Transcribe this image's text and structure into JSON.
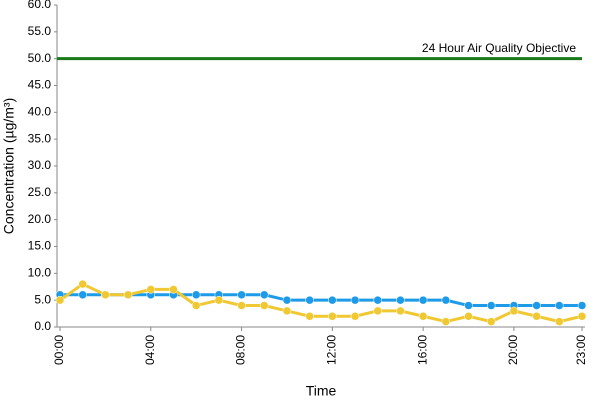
{
  "chart_data": {
    "type": "line",
    "x_label": "Time",
    "y_label": "Concentration (µg/m³)",
    "categories": [
      "00:00",
      null,
      null,
      null,
      "04:00",
      null,
      null,
      null,
      "08:00",
      null,
      null,
      null,
      "12:00",
      null,
      null,
      null,
      "16:00",
      null,
      null,
      null,
      "20:00",
      null,
      null,
      "23:00"
    ],
    "series": [
      {
        "color": "#1e9be8",
        "values": [
          6,
          6,
          6,
          6,
          6,
          6,
          6,
          6,
          6,
          6,
          5,
          5,
          5,
          5,
          5,
          5,
          5,
          5,
          4,
          4,
          4,
          4,
          4,
          4
        ]
      },
      {
        "color": "#f0c832",
        "values": [
          5,
          8,
          6,
          6,
          7,
          7,
          4,
          5,
          4,
          4,
          3,
          2,
          2,
          2,
          3,
          3,
          2,
          1,
          2,
          1,
          3,
          2,
          1,
          2
        ]
      }
    ],
    "reference_line": {
      "value": 50,
      "label": "24 Hour Air Quality Objective",
      "color": "#1a7a1a"
    },
    "ylim": [
      0,
      60
    ],
    "yticks": [
      {
        "value": 0,
        "label": "0.0"
      },
      {
        "value": 5,
        "label": "5.0"
      },
      {
        "value": 10,
        "label": "10.0"
      },
      {
        "value": 15,
        "label": "15.0"
      },
      {
        "value": 20,
        "label": "20.0"
      },
      {
        "value": 25,
        "label": "25.0"
      },
      {
        "value": 30,
        "label": "30.0"
      },
      {
        "value": 35,
        "label": "35.0"
      },
      {
        "value": 40,
        "label": "40.0"
      },
      {
        "value": 45,
        "label": "45.0"
      },
      {
        "value": 50,
        "label": "50.0"
      },
      {
        "value": 55,
        "label": "55.0"
      },
      {
        "value": 60,
        "label": "60.0"
      }
    ],
    "grid": false
  }
}
